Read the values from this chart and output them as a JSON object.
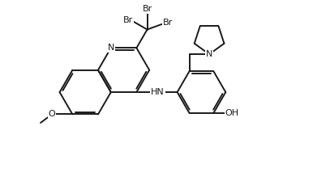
{
  "bg": "#ffffff",
  "lc": "#1a1a1a",
  "tc": "#1a1a1a",
  "lw": 1.4,
  "fs": 8.0,
  "fw": 4.07,
  "fh": 2.24,
  "dpi": 100,
  "xlim": [
    -0.5,
    10.5
  ],
  "ylim": [
    -0.3,
    6.0
  ]
}
